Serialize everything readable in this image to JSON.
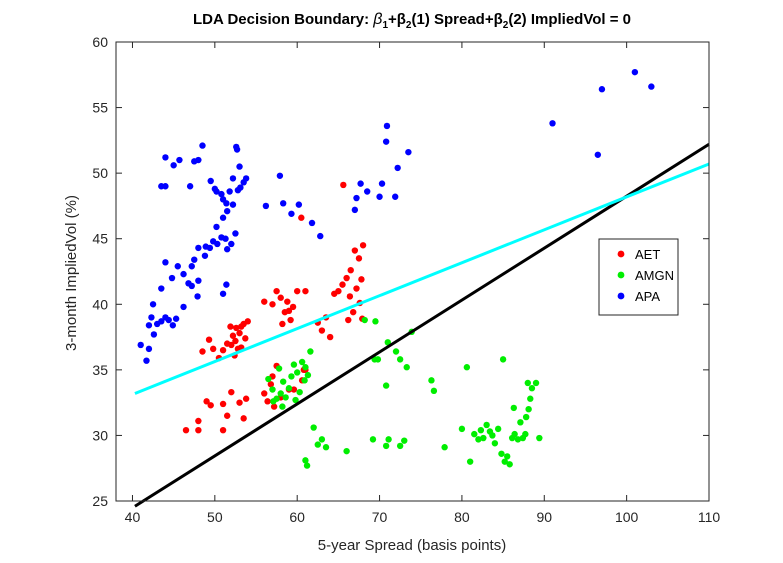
{
  "chart_data": {
    "type": "scatter",
    "title": "LDA Decision Boundary: β1+β2(1) Spread+β2(2) ImpliedVol = 0",
    "title_parts": {
      "prefix": "LDA Decision Boundary: ",
      "b1": "β",
      "b1_sub": "1",
      "b2a": "+β",
      "b2a_sub": "2",
      "mid": "(1) Spread+β",
      "b2b_sub": "2",
      "suffix": "(2) ImpliedVol = 0"
    },
    "xlabel": "5-year Spread (basis points)",
    "ylabel": "3-month ImpliedVol (%)",
    "xlim": [
      38,
      110
    ],
    "ylim": [
      25,
      60
    ],
    "xticks": [
      40,
      50,
      60,
      70,
      80,
      90,
      100,
      110
    ],
    "yticks": [
      25,
      30,
      35,
      40,
      45,
      50,
      55,
      60
    ],
    "legend_position": "right",
    "series": [
      {
        "name": "AET",
        "color": "#ff0000",
        "points": [
          [
            46.5,
            30.4
          ],
          [
            48,
            31.1
          ],
          [
            48,
            30.4
          ],
          [
            49,
            32.6
          ],
          [
            49.5,
            32.3
          ],
          [
            51,
            32.4
          ],
          [
            51,
            30.4
          ],
          [
            51.5,
            31.5
          ],
          [
            52,
            33.3
          ],
          [
            53,
            32.5
          ],
          [
            53.5,
            31.3
          ],
          [
            53.8,
            32.8
          ],
          [
            48.5,
            36.4
          ],
          [
            49.3,
            37.3
          ],
          [
            49.8,
            36.6
          ],
          [
            50.5,
            35.9
          ],
          [
            51,
            36.5
          ],
          [
            51.5,
            37
          ],
          [
            52,
            36.9
          ],
          [
            52.4,
            36.1
          ],
          [
            52.8,
            36.6
          ],
          [
            52.2,
            37.6
          ],
          [
            51.9,
            38.3
          ],
          [
            52.6,
            38.2
          ],
          [
            53,
            37.8
          ],
          [
            53.2,
            38.3
          ],
          [
            53.5,
            38.5
          ],
          [
            53.7,
            37.4
          ],
          [
            54,
            38.7
          ],
          [
            53.2,
            36.7
          ],
          [
            52.5,
            37.2
          ],
          [
            56,
            40.2
          ],
          [
            57,
            40
          ],
          [
            58,
            40.5
          ],
          [
            58.5,
            39.4
          ],
          [
            58.8,
            40.2
          ],
          [
            59.2,
            38.8
          ],
          [
            60,
            41
          ],
          [
            59.5,
            39.8
          ],
          [
            58.2,
            38.5
          ],
          [
            59,
            39.5
          ],
          [
            57.5,
            41
          ],
          [
            61,
            41
          ],
          [
            60.5,
            46.6
          ],
          [
            62.5,
            38.6
          ],
          [
            63,
            38
          ],
          [
            63.5,
            39
          ],
          [
            64,
            37.5
          ],
          [
            64.5,
            40.8
          ],
          [
            65,
            41
          ],
          [
            65.5,
            41.5
          ],
          [
            66,
            42
          ],
          [
            66.5,
            42.6
          ],
          [
            67,
            44.1
          ],
          [
            67.5,
            43.5
          ],
          [
            68,
            44.5
          ],
          [
            67.8,
            41.9
          ],
          [
            67.2,
            41.2
          ],
          [
            66.4,
            40.6
          ],
          [
            66.8,
            39.4
          ],
          [
            67.6,
            40.1
          ],
          [
            66.2,
            38.8
          ],
          [
            65.6,
            49.1
          ],
          [
            67.9,
            38.9
          ],
          [
            56,
            33.2
          ],
          [
            56.4,
            32.6
          ],
          [
            57,
            34.5
          ],
          [
            57.2,
            32.2
          ],
          [
            58,
            32.9
          ],
          [
            57.5,
            35.3
          ],
          [
            59,
            33.5
          ],
          [
            60.6,
            34.2
          ],
          [
            60.8,
            35
          ],
          [
            61,
            35
          ],
          [
            56.8,
            33.9
          ],
          [
            59.6,
            33.5
          ]
        ]
      },
      {
        "name": "AMGN",
        "color": "#00ee00",
        "points": [
          [
            56.5,
            34.3
          ],
          [
            57,
            33.5
          ],
          [
            57.5,
            32.8
          ],
          [
            58,
            33.2
          ],
          [
            58.3,
            34.1
          ],
          [
            58.6,
            32.9
          ],
          [
            59,
            33.6
          ],
          [
            59.3,
            34.5
          ],
          [
            59.6,
            35.4
          ],
          [
            60,
            34.8
          ],
          [
            60.3,
            33.3
          ],
          [
            60.6,
            35.6
          ],
          [
            61,
            35.2
          ],
          [
            61.3,
            34.6
          ],
          [
            61.6,
            36.4
          ],
          [
            58.2,
            32.2
          ],
          [
            59.8,
            32.7
          ],
          [
            57.8,
            35.1
          ],
          [
            60.9,
            34.2
          ],
          [
            57.1,
            32.6
          ],
          [
            62,
            30.6
          ],
          [
            62.5,
            29.3
          ],
          [
            63,
            29.7
          ],
          [
            61,
            28.1
          ],
          [
            61.2,
            27.7
          ],
          [
            63.5,
            29.1
          ],
          [
            66,
            28.8
          ],
          [
            68.2,
            38.8
          ],
          [
            69.5,
            38.7
          ],
          [
            69.4,
            35.8
          ],
          [
            69.8,
            35.8
          ],
          [
            71,
            37.1
          ],
          [
            72,
            36.4
          ],
          [
            72.5,
            35.8
          ],
          [
            73.3,
            35.2
          ],
          [
            73.9,
            37.9
          ],
          [
            70.8,
            33.8
          ],
          [
            76.3,
            34.2
          ],
          [
            76.6,
            33.4
          ],
          [
            69.2,
            29.7
          ],
          [
            70.8,
            29.2
          ],
          [
            71.1,
            29.7
          ],
          [
            72.5,
            29.2
          ],
          [
            73,
            29.6
          ],
          [
            77.9,
            29.1
          ],
          [
            80,
            30.5
          ],
          [
            80.6,
            35.2
          ],
          [
            81,
            28
          ],
          [
            81.5,
            30.1
          ],
          [
            82,
            29.7
          ],
          [
            82.3,
            30.4
          ],
          [
            82.6,
            29.8
          ],
          [
            83,
            30.8
          ],
          [
            83.4,
            30.3
          ],
          [
            83.7,
            30
          ],
          [
            84,
            29.4
          ],
          [
            84.4,
            30.5
          ],
          [
            84.8,
            28.6
          ],
          [
            85.2,
            28
          ],
          [
            85.5,
            28.4
          ],
          [
            85.8,
            27.8
          ],
          [
            86.1,
            29.8
          ],
          [
            86.4,
            30.1
          ],
          [
            86.8,
            29.7
          ],
          [
            87.1,
            31
          ],
          [
            87.4,
            29.8
          ],
          [
            87.7,
            30.1
          ],
          [
            88,
            34
          ],
          [
            88.3,
            32.8
          ],
          [
            88.5,
            33.6
          ],
          [
            88.1,
            32
          ],
          [
            87.8,
            31.4
          ],
          [
            89,
            34
          ],
          [
            89.4,
            29.8
          ],
          [
            85,
            35.8
          ],
          [
            86.3,
            32.1
          ]
        ]
      },
      {
        "name": "APA",
        "color": "#0000ff",
        "points": [
          [
            41,
            36.9
          ],
          [
            41.7,
            35.7
          ],
          [
            42,
            36.6
          ],
          [
            42,
            38.4
          ],
          [
            42.3,
            39
          ],
          [
            42.6,
            37.7
          ],
          [
            43,
            38.5
          ],
          [
            43.5,
            38.7
          ],
          [
            42.5,
            40
          ],
          [
            43.5,
            41.2
          ],
          [
            44,
            39
          ],
          [
            44.4,
            38.8
          ],
          [
            44.9,
            38.4
          ],
          [
            45.3,
            38.9
          ],
          [
            46.2,
            39.8
          ],
          [
            46.2,
            42.3
          ],
          [
            46.8,
            41.6
          ],
          [
            47.2,
            42.9
          ],
          [
            47.5,
            43.4
          ],
          [
            48,
            44.3
          ],
          [
            48.8,
            43.7
          ],
          [
            48.9,
            44.4
          ],
          [
            49.4,
            44.3
          ],
          [
            49.8,
            44.8
          ],
          [
            50.3,
            44.6
          ],
          [
            50.8,
            45.1
          ],
          [
            51.3,
            45
          ],
          [
            51.5,
            44.2
          ],
          [
            52,
            44.6
          ],
          [
            52.5,
            45.4
          ],
          [
            51.4,
            41.5
          ],
          [
            51,
            40.8
          ],
          [
            48,
            41.8
          ],
          [
            47.9,
            40.6
          ],
          [
            47.2,
            41.4
          ],
          [
            44,
            43.2
          ],
          [
            44.8,
            42
          ],
          [
            45.5,
            42.9
          ],
          [
            43.5,
            49
          ],
          [
            44,
            49
          ],
          [
            44,
            51.2
          ],
          [
            45,
            50.6
          ],
          [
            45.7,
            51
          ],
          [
            47,
            49
          ],
          [
            47.5,
            50.9
          ],
          [
            48,
            51
          ],
          [
            48.5,
            52.1
          ],
          [
            49.5,
            49.4
          ],
          [
            50.2,
            48.6
          ],
          [
            50,
            48.8
          ],
          [
            50.8,
            48.4
          ],
          [
            51,
            48
          ],
          [
            51.4,
            47.7
          ],
          [
            51.8,
            48.6
          ],
          [
            52.2,
            49.6
          ],
          [
            52.6,
            52
          ],
          [
            52.7,
            51.8
          ],
          [
            53,
            50.5
          ],
          [
            53.5,
            49.3
          ],
          [
            53.8,
            49.6
          ],
          [
            52.8,
            48.7
          ],
          [
            51,
            46.6
          ],
          [
            50.2,
            45.9
          ],
          [
            51.5,
            47.1
          ],
          [
            52.2,
            47.6
          ],
          [
            53.1,
            48.9
          ],
          [
            56.2,
            47.5
          ],
          [
            57.9,
            49.8
          ],
          [
            58.3,
            47.7
          ],
          [
            59.3,
            46.9
          ],
          [
            60.2,
            47.6
          ],
          [
            61.8,
            46.2
          ],
          [
            62.8,
            45.2
          ],
          [
            67,
            47.2
          ],
          [
            67.2,
            48.1
          ],
          [
            67.7,
            49.2
          ],
          [
            68.5,
            48.6
          ],
          [
            70,
            48.2
          ],
          [
            70.3,
            49.2
          ],
          [
            70.8,
            52.4
          ],
          [
            70.9,
            53.6
          ],
          [
            71.9,
            48.2
          ],
          [
            72.2,
            50.4
          ],
          [
            73.5,
            51.6
          ],
          [
            91,
            53.8
          ],
          [
            96.5,
            51.4
          ],
          [
            97,
            56.4
          ],
          [
            101,
            57.7
          ],
          [
            103,
            56.6
          ]
        ]
      }
    ],
    "lines": [
      {
        "name": "boundary-black",
        "color": "#000000",
        "x": [
          40.3,
          110
        ],
        "y": [
          24.6,
          52.2
        ]
      },
      {
        "name": "boundary-cyan",
        "color": "#00ffff",
        "x": [
          40.3,
          110
        ],
        "y": [
          33.2,
          50.7
        ]
      }
    ]
  }
}
